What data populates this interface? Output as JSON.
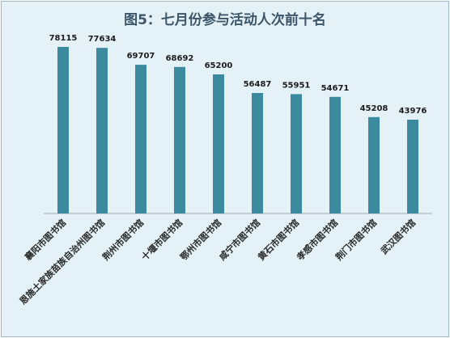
{
  "chart_data": {
    "type": "bar",
    "title": "图5：七月份参与活动人次前十名",
    "categories": [
      "襄阳市图书馆",
      "恩施土家族苗族自治州图书馆",
      "荆州市图书馆",
      "十堰市图书馆",
      "鄂州市图书馆",
      "咸宁市图书馆",
      "黄石市图书馆",
      "孝感市图书馆",
      "荆门市图书馆",
      "武汉图书馆"
    ],
    "values": [
      78115,
      77634,
      69707,
      68692,
      65200,
      56487,
      55951,
      54671,
      45208,
      43976
    ],
    "data_labels": [
      "78115",
      "77634",
      "69707",
      "68692",
      "65200",
      "56487",
      "55951",
      "54671",
      "45208",
      "43976"
    ],
    "xlabel": "",
    "ylabel": "",
    "ylim": [
      0,
      80000
    ],
    "grid": false,
    "legend": "none",
    "bar_color": "#3c8aa0",
    "background_color": "#e4f1f6"
  }
}
